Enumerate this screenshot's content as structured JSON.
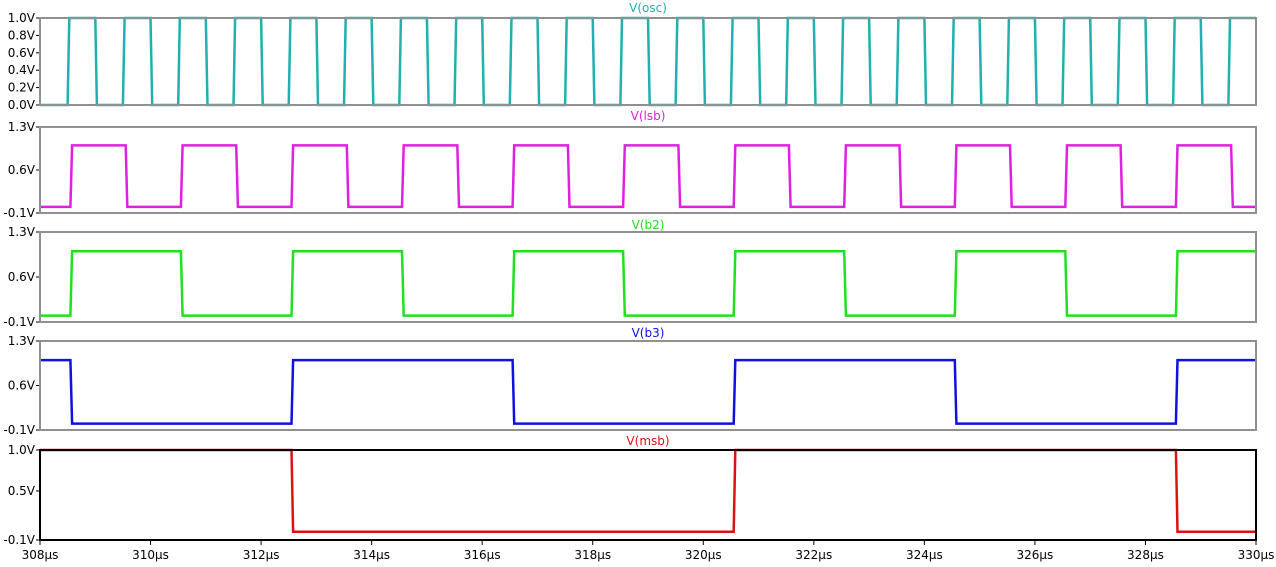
{
  "chart_data": {
    "type": "line",
    "x_ticks": [
      "308µs",
      "310µs",
      "312µs",
      "314µs",
      "316µs",
      "318µs",
      "320µs",
      "322µs",
      "324µs",
      "326µs",
      "328µs",
      "330µs"
    ],
    "xlim": [
      308,
      330
    ],
    "panels": [
      {
        "title": "V(osc)",
        "color": "#20b0b0",
        "frame_color": "#909090",
        "ylim": [
          0.0,
          1.0
        ],
        "y_ticks": [
          {
            "v": 1.0,
            "label": "1.0V"
          },
          {
            "v": 0.8,
            "label": "0.8V"
          },
          {
            "v": 0.6,
            "label": "0.6V"
          },
          {
            "v": 0.4,
            "label": "0.4V"
          },
          {
            "v": 0.2,
            "label": "0.2V"
          },
          {
            "v": 0.0,
            "label": "0.0V"
          }
        ],
        "low": 0.0,
        "high": 1.0,
        "initial": 0.0,
        "period": 1.0,
        "first_edge": 308.5
      },
      {
        "title": "V(lsb)",
        "color": "#e020e0",
        "frame_color": "#909090",
        "ylim": [
          -0.1,
          1.3
        ],
        "y_ticks": [
          {
            "v": 1.3,
            "label": "1.3V"
          },
          {
            "v": 0.6,
            "label": "0.6V"
          },
          {
            "v": -0.1,
            "label": "-0.1V"
          }
        ],
        "low": 0.0,
        "high": 1.0,
        "initial": 0.0,
        "period": 2.0,
        "first_edge": 308.55
      },
      {
        "title": "V(b2)",
        "color": "#20e020",
        "frame_color": "#909090",
        "ylim": [
          -0.1,
          1.3
        ],
        "y_ticks": [
          {
            "v": 1.3,
            "label": "1.3V"
          },
          {
            "v": 0.6,
            "label": "0.6V"
          },
          {
            "v": -0.1,
            "label": "-0.1V"
          }
        ],
        "low": 0.0,
        "high": 1.0,
        "initial": 0.0,
        "period": 4.0,
        "first_edge": 308.55
      },
      {
        "title": "V(b3)",
        "color": "#1010e0",
        "frame_color": "#909090",
        "ylim": [
          -0.1,
          1.3
        ],
        "y_ticks": [
          {
            "v": 1.3,
            "label": "1.3V"
          },
          {
            "v": 0.6,
            "label": "0.6V"
          },
          {
            "v": -0.1,
            "label": "-0.1V"
          }
        ],
        "low": 0.0,
        "high": 1.0,
        "initial": 1.0,
        "period": 8.0,
        "first_edge": 308.55
      },
      {
        "title": "V(msb)",
        "color": "#e01010",
        "frame_color": "#000000",
        "ylim": [
          -0.1,
          1.0
        ],
        "y_ticks": [
          {
            "v": 1.0,
            "label": "1.0V"
          },
          {
            "v": 0.5,
            "label": "0.5V"
          },
          {
            "v": -0.1,
            "label": "-0.1V"
          }
        ],
        "low": 0.0,
        "high": 1.0,
        "initial": 1.0,
        "period": 16.0,
        "first_edge": 312.55
      }
    ]
  }
}
